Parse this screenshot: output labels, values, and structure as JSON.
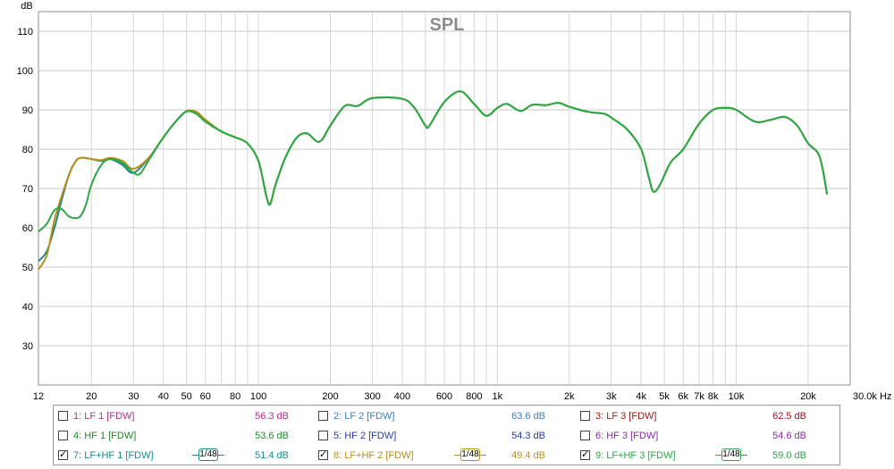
{
  "chart_data": {
    "type": "line",
    "title": "SPL",
    "ylabel": "dB",
    "x_scale": "log",
    "xlim": [
      12,
      30000
    ],
    "ylim": [
      20,
      115
    ],
    "grid": true,
    "y_ticks": [
      30,
      40,
      50,
      60,
      70,
      80,
      90,
      100,
      110
    ],
    "x_ticks": [
      {
        "value": 12,
        "label": "12"
      },
      {
        "value": 20,
        "label": "20"
      },
      {
        "value": 30,
        "label": "30"
      },
      {
        "value": 40,
        "label": "40"
      },
      {
        "value": 50,
        "label": "50"
      },
      {
        "value": 60,
        "label": "60"
      },
      {
        "value": 80,
        "label": "80"
      },
      {
        "value": 100,
        "label": "100"
      },
      {
        "value": 200,
        "label": "200"
      },
      {
        "value": 300,
        "label": "300"
      },
      {
        "value": 400,
        "label": "400"
      },
      {
        "value": 600,
        "label": "600"
      },
      {
        "value": 800,
        "label": "800"
      },
      {
        "value": 1000,
        "label": "1k"
      },
      {
        "value": 2000,
        "label": "2k"
      },
      {
        "value": 3000,
        "label": "3k"
      },
      {
        "value": 4000,
        "label": "4k"
      },
      {
        "value": 5000,
        "label": "5k"
      },
      {
        "value": 6000,
        "label": "6k"
      },
      {
        "value": 7000,
        "label": "7k"
      },
      {
        "value": 8000,
        "label": "8k"
      },
      {
        "value": 10000,
        "label": "10k"
      },
      {
        "value": 20000,
        "label": "20k"
      },
      {
        "value": 30000,
        "label": "30.0k Hz"
      }
    ],
    "series": [
      {
        "name": "7: LF+HF 1 [FDW]",
        "color": "#1a8a8a",
        "points": [
          [
            12,
            51.5
          ],
          [
            13,
            54
          ],
          [
            14,
            60
          ],
          [
            15,
            67
          ],
          [
            16,
            73
          ],
          [
            17,
            76.5
          ],
          [
            18,
            77.8
          ],
          [
            20,
            77.5
          ],
          [
            22,
            77
          ],
          [
            24,
            77.5
          ],
          [
            27,
            76
          ],
          [
            30,
            74
          ],
          [
            35,
            78
          ],
          [
            40,
            83
          ],
          [
            45,
            87
          ],
          [
            50,
            89.6
          ],
          [
            55,
            89
          ],
          [
            60,
            87
          ],
          [
            70,
            84.5
          ],
          [
            80,
            83
          ],
          [
            90,
            81.5
          ],
          [
            100,
            77
          ],
          [
            108,
            68
          ],
          [
            112,
            66
          ],
          [
            118,
            71
          ],
          [
            130,
            78
          ],
          [
            145,
            83
          ],
          [
            160,
            84
          ],
          [
            175,
            82
          ],
          [
            185,
            82.5
          ],
          [
            200,
            86
          ],
          [
            230,
            91
          ],
          [
            260,
            91
          ],
          [
            300,
            93
          ],
          [
            400,
            92.8
          ],
          [
            450,
            90.5
          ],
          [
            500,
            86
          ],
          [
            520,
            86
          ],
          [
            600,
            92
          ],
          [
            700,
            94.7
          ],
          [
            800,
            91.5
          ],
          [
            900,
            88.5
          ],
          [
            1000,
            90.5
          ],
          [
            1100,
            91.5
          ],
          [
            1250,
            89.7
          ],
          [
            1400,
            91.3
          ],
          [
            1600,
            91.2
          ],
          [
            1800,
            91.8
          ],
          [
            2000,
            90.8
          ],
          [
            2400,
            89.5
          ],
          [
            2800,
            89
          ],
          [
            3000,
            88
          ],
          [
            3500,
            85
          ],
          [
            4000,
            80
          ],
          [
            4300,
            73
          ],
          [
            4500,
            69.2
          ],
          [
            4800,
            71
          ],
          [
            5300,
            76.5
          ],
          [
            6000,
            80
          ],
          [
            7000,
            86.5
          ],
          [
            8000,
            90
          ],
          [
            9000,
            90.5
          ],
          [
            10000,
            90
          ],
          [
            12000,
            87
          ],
          [
            14000,
            87.5
          ],
          [
            16000,
            88.2
          ],
          [
            18000,
            86
          ],
          [
            20000,
            81.5
          ],
          [
            22000,
            79
          ],
          [
            23000,
            75
          ],
          [
            24000,
            68.5
          ]
        ]
      },
      {
        "name": "8: LF+HF 2 [FDW]",
        "color": "#b98e16",
        "points": [
          [
            12,
            49.4
          ],
          [
            13,
            53
          ],
          [
            14,
            62
          ],
          [
            15,
            68
          ],
          [
            16,
            73
          ],
          [
            17,
            76.5
          ],
          [
            18,
            77.8
          ],
          [
            20,
            77.5
          ],
          [
            22,
            77.2
          ],
          [
            24,
            77.8
          ],
          [
            27,
            77
          ],
          [
            30,
            75
          ],
          [
            35,
            78
          ],
          [
            40,
            83
          ],
          [
            45,
            87
          ],
          [
            50,
            89.7
          ],
          [
            55,
            89.5
          ],
          [
            60,
            87.5
          ],
          [
            70,
            84.5
          ],
          [
            80,
            83
          ],
          [
            90,
            81.5
          ],
          [
            100,
            77
          ],
          [
            108,
            68
          ],
          [
            112,
            66
          ],
          [
            118,
            71
          ],
          [
            130,
            78
          ],
          [
            145,
            83
          ],
          [
            160,
            84
          ],
          [
            175,
            82
          ],
          [
            185,
            82.5
          ],
          [
            200,
            86
          ],
          [
            230,
            91
          ],
          [
            260,
            91
          ],
          [
            300,
            93
          ],
          [
            400,
            92.8
          ],
          [
            450,
            90.5
          ],
          [
            500,
            86
          ],
          [
            520,
            86
          ],
          [
            600,
            92
          ],
          [
            700,
            94.7
          ],
          [
            800,
            91.5
          ],
          [
            900,
            88.5
          ],
          [
            1000,
            90.5
          ],
          [
            1100,
            91.5
          ],
          [
            1250,
            89.7
          ],
          [
            1400,
            91.3
          ],
          [
            1600,
            91.2
          ],
          [
            1800,
            91.8
          ],
          [
            2000,
            90.8
          ],
          [
            2400,
            89.5
          ],
          [
            2800,
            89
          ],
          [
            3000,
            88
          ],
          [
            3500,
            85
          ],
          [
            4000,
            80
          ],
          [
            4300,
            73
          ],
          [
            4500,
            69.2
          ],
          [
            4800,
            71
          ],
          [
            5300,
            76.5
          ],
          [
            6000,
            80
          ],
          [
            7000,
            86.5
          ],
          [
            8000,
            90
          ],
          [
            9000,
            90.5
          ],
          [
            10000,
            90
          ],
          [
            12000,
            87
          ],
          [
            14000,
            87.5
          ],
          [
            16000,
            88.2
          ],
          [
            18000,
            86
          ],
          [
            20000,
            81.5
          ],
          [
            22000,
            79
          ],
          [
            23000,
            75
          ],
          [
            24000,
            68.5
          ]
        ]
      },
      {
        "name": "9: LF+HF 3 [FDW]",
        "color": "#2ca845",
        "points": [
          [
            12,
            59
          ],
          [
            13,
            61
          ],
          [
            14,
            64.5
          ],
          [
            15,
            64.8
          ],
          [
            16,
            63
          ],
          [
            17,
            62.5
          ],
          [
            18,
            63
          ],
          [
            19,
            66
          ],
          [
            20,
            71
          ],
          [
            22,
            76
          ],
          [
            24,
            77.5
          ],
          [
            27,
            76.5
          ],
          [
            30,
            74
          ],
          [
            32,
            73.8
          ],
          [
            35,
            77.5
          ],
          [
            40,
            83
          ],
          [
            45,
            87
          ],
          [
            50,
            89.6
          ],
          [
            55,
            89
          ],
          [
            60,
            87
          ],
          [
            70,
            84.5
          ],
          [
            80,
            83
          ],
          [
            90,
            81.5
          ],
          [
            100,
            77
          ],
          [
            108,
            68
          ],
          [
            112,
            66
          ],
          [
            118,
            71
          ],
          [
            130,
            78
          ],
          [
            145,
            83
          ],
          [
            160,
            84
          ],
          [
            175,
            82
          ],
          [
            185,
            82.5
          ],
          [
            200,
            86
          ],
          [
            230,
            91
          ],
          [
            260,
            91
          ],
          [
            300,
            93
          ],
          [
            400,
            92.8
          ],
          [
            450,
            90.5
          ],
          [
            500,
            86
          ],
          [
            520,
            86
          ],
          [
            600,
            92
          ],
          [
            700,
            94.7
          ],
          [
            800,
            91.5
          ],
          [
            900,
            88.5
          ],
          [
            1000,
            90.5
          ],
          [
            1100,
            91.5
          ],
          [
            1250,
            89.7
          ],
          [
            1400,
            91.3
          ],
          [
            1600,
            91.2
          ],
          [
            1800,
            91.8
          ],
          [
            2000,
            90.8
          ],
          [
            2400,
            89.5
          ],
          [
            2800,
            89
          ],
          [
            3000,
            88
          ],
          [
            3500,
            85
          ],
          [
            4000,
            80
          ],
          [
            4300,
            73
          ],
          [
            4500,
            69.2
          ],
          [
            4800,
            71
          ],
          [
            5300,
            76.5
          ],
          [
            6000,
            80
          ],
          [
            7000,
            86.5
          ],
          [
            8000,
            90
          ],
          [
            9000,
            90.5
          ],
          [
            10000,
            90
          ],
          [
            12000,
            87
          ],
          [
            14000,
            87.5
          ],
          [
            16000,
            88.2
          ],
          [
            18000,
            86
          ],
          [
            20000,
            81.5
          ],
          [
            22000,
            79
          ],
          [
            23000,
            75
          ],
          [
            24000,
            68.5
          ]
        ]
      }
    ]
  },
  "legend": {
    "entries": [
      {
        "label": "1: LF 1 [FDW]",
        "value": "56.3 dB",
        "color": "#b0308a",
        "checked": false,
        "smoothing": ""
      },
      {
        "label": "2: LF 2 [FDW]",
        "value": "63.6 dB",
        "color": "#3a7fc0",
        "checked": false,
        "smoothing": ""
      },
      {
        "label": "3: LF 3 [FDW]",
        "value": "62.5 dB",
        "color": "#a01818",
        "checked": false,
        "smoothing": ""
      },
      {
        "label": "4: HF 1 [FDW]",
        "value": "53.6 dB",
        "color": "#1e8a2a",
        "checked": false,
        "smoothing": ""
      },
      {
        "label": "5: HF 2 [FDW]",
        "value": "54.3 dB",
        "color": "#2a3aa8",
        "checked": false,
        "smoothing": ""
      },
      {
        "label": "6: HF 3 [FDW]",
        "value": "54.6 dB",
        "color": "#8a2aa8",
        "checked": false,
        "smoothing": ""
      },
      {
        "label": "7: LF+HF 1 [FDW]",
        "value": "51.4 dB",
        "color": "#1a8a8a",
        "checked": true,
        "smoothing": "1/48"
      },
      {
        "label": "8: LF+HF 2 [FDW]",
        "value": "49.4 dB",
        "color": "#b98e16",
        "checked": true,
        "smoothing": "1/48"
      },
      {
        "label": "9: LF+HF 3 [FDW]",
        "value": "59.0 dB",
        "color": "#2ca845",
        "checked": true,
        "smoothing": "1/48"
      }
    ]
  }
}
